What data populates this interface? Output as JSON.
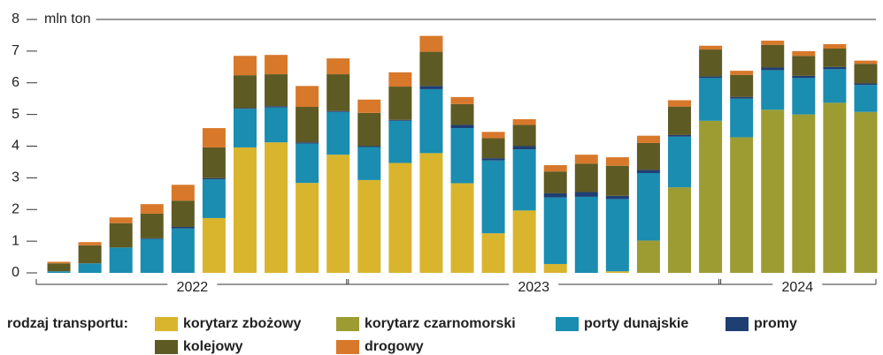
{
  "chart_data": {
    "type": "stacked_bar",
    "y_label": "mln ton",
    "legend_title": "rodzaj transportu:",
    "categories": [
      null,
      null,
      null,
      null,
      null,
      null,
      null,
      null,
      null,
      null,
      null,
      null,
      null,
      null,
      null,
      null,
      null,
      null,
      null,
      null,
      null,
      null,
      null,
      null,
      null,
      null,
      null
    ],
    "groups": [
      {
        "label": "2022",
        "start": 0,
        "end": 9
      },
      {
        "label": "2023",
        "start": 10,
        "end": 21
      },
      {
        "label": "2024",
        "start": 22,
        "end": 26
      }
    ],
    "series": [
      {
        "name": "korytarz zbożowy",
        "color": "#d9b52e",
        "values": [
          0,
          0,
          0,
          0,
          0,
          1.73,
          3.96,
          4.12,
          2.84,
          3.73,
          2.93,
          3.47,
          3.78,
          2.83,
          1.25,
          1.97,
          0.28,
          0,
          0.05,
          0,
          0,
          0,
          0,
          0,
          0,
          0,
          0
        ]
      },
      {
        "name": "korytarz czarnomorski",
        "color": "#9c9c33",
        "values": [
          0,
          0,
          0,
          0,
          0,
          0,
          0,
          0,
          0,
          0,
          0,
          0,
          0,
          0,
          0,
          0,
          0,
          0,
          0,
          1.02,
          2.7,
          4.8,
          4.28,
          5.15,
          5.0,
          5.37,
          5.08
        ]
      },
      {
        "name": "porty dunajskie",
        "color": "#1a8db0",
        "values": [
          0.05,
          0.3,
          0.8,
          1.07,
          1.4,
          1.22,
          1.22,
          1.1,
          1.24,
          1.35,
          1.04,
          1.33,
          2.02,
          1.74,
          2.3,
          1.93,
          2.1,
          2.4,
          2.28,
          2.13,
          1.6,
          1.35,
          1.22,
          1.25,
          1.15,
          1.06,
          0.85
        ]
      },
      {
        "name": "promy",
        "color": "#1f3f73",
        "values": [
          0,
          0,
          0,
          0.02,
          0.05,
          0.04,
          0.02,
          0.04,
          0.04,
          0.03,
          0.03,
          0.03,
          0.1,
          0.1,
          0.07,
          0.1,
          0.13,
          0.15,
          0.1,
          0.1,
          0.05,
          0.05,
          0.05,
          0.08,
          0.07,
          0.07,
          0.05
        ]
      },
      {
        "name": "kolejowy",
        "color": "#5e5a24",
        "values": [
          0.25,
          0.57,
          0.77,
          0.78,
          0.83,
          0.97,
          1.04,
          1.01,
          1.12,
          1.16,
          1.05,
          1.05,
          1.08,
          0.66,
          0.63,
          0.67,
          0.69,
          0.9,
          0.95,
          0.85,
          0.9,
          0.85,
          0.7,
          0.72,
          0.63,
          0.58,
          0.62
        ]
      },
      {
        "name": "drogowy",
        "color": "#d8782a",
        "values": [
          0.05,
          0.1,
          0.18,
          0.3,
          0.5,
          0.61,
          0.61,
          0.61,
          0.66,
          0.5,
          0.42,
          0.45,
          0.5,
          0.22,
          0.2,
          0.18,
          0.2,
          0.28,
          0.27,
          0.23,
          0.2,
          0.12,
          0.13,
          0.13,
          0.15,
          0.14,
          0.1
        ]
      }
    ],
    "ylim": [
      0,
      8
    ],
    "yticks": [
      0,
      1,
      2,
      3,
      4,
      5,
      6,
      7,
      8
    ],
    "grid": false
  }
}
